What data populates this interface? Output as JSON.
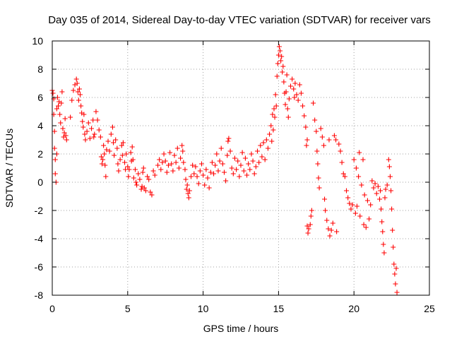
{
  "chart_data": {
    "type": "scatter",
    "title": "Day 035 of 2014, Sidereal Day-to-day VTEC variation (SDTVAR) for receiver vars",
    "xlabel": "GPS time / hours",
    "ylabel": "SDTVAR / TECUs",
    "xlim": [
      0,
      25
    ],
    "ylim": [
      -8,
      10
    ],
    "xticks": [
      "0",
      "5",
      "10",
      "15",
      "20",
      "25"
    ],
    "yticks": [
      "-8",
      "-6",
      "-4",
      "-2",
      "0",
      "2",
      "4",
      "6",
      "8",
      "10"
    ],
    "grid": true,
    "marker": "plus",
    "color": "#ff0000",
    "series": [
      {
        "name": "SDTVAR",
        "points": [
          [
            0.0,
            6.5
          ],
          [
            0.05,
            6.3
          ],
          [
            0.1,
            5.9
          ],
          [
            0.1,
            4.8
          ],
          [
            0.15,
            3.6
          ],
          [
            0.15,
            2.4
          ],
          [
            0.2,
            1.6
          ],
          [
            0.2,
            0.6
          ],
          [
            0.25,
            0.0
          ],
          [
            0.3,
            2.0
          ],
          [
            0.3,
            5.2
          ],
          [
            0.35,
            6.0
          ],
          [
            0.4,
            5.4
          ],
          [
            0.45,
            5.7
          ],
          [
            0.5,
            4.8
          ],
          [
            0.55,
            4.2
          ],
          [
            0.6,
            5.6
          ],
          [
            0.65,
            6.4
          ],
          [
            0.7,
            3.8
          ],
          [
            0.75,
            3.2
          ],
          [
            0.8,
            3.5
          ],
          [
            0.85,
            4.5
          ],
          [
            0.9,
            3.3
          ],
          [
            0.95,
            3.0
          ],
          [
            1.2,
            4.6
          ],
          [
            1.3,
            5.8
          ],
          [
            1.4,
            6.5
          ],
          [
            1.5,
            6.9
          ],
          [
            1.6,
            7.3
          ],
          [
            1.65,
            7.0
          ],
          [
            1.7,
            6.4
          ],
          [
            1.75,
            5.8
          ],
          [
            1.8,
            6.6
          ],
          [
            1.85,
            6.2
          ],
          [
            1.9,
            5.4
          ],
          [
            1.95,
            4.9
          ],
          [
            2.0,
            4.3
          ],
          [
            2.05,
            3.9
          ],
          [
            2.1,
            4.8
          ],
          [
            2.15,
            3.4
          ],
          [
            2.2,
            3.0
          ],
          [
            2.3,
            3.6
          ],
          [
            2.4,
            4.2
          ],
          [
            2.5,
            3.1
          ],
          [
            2.6,
            3.8
          ],
          [
            2.7,
            4.4
          ],
          [
            2.75,
            3.2
          ],
          [
            2.8,
            3.4
          ],
          [
            2.9,
            5.0
          ],
          [
            3.0,
            4.4
          ],
          [
            3.1,
            3.7
          ],
          [
            3.2,
            3.2
          ],
          [
            3.25,
            1.8
          ],
          [
            3.3,
            1.3
          ],
          [
            3.35,
            1.6
          ],
          [
            3.4,
            2.6
          ],
          [
            3.45,
            2.0
          ],
          [
            3.5,
            1.2
          ],
          [
            3.55,
            0.4
          ],
          [
            3.6,
            2.3
          ],
          [
            3.7,
            2.9
          ],
          [
            3.8,
            2.2
          ],
          [
            3.9,
            3.4
          ],
          [
            4.0,
            3.9
          ],
          [
            4.05,
            2.8
          ],
          [
            4.1,
            1.9
          ],
          [
            4.2,
            3.0
          ],
          [
            4.3,
            2.4
          ],
          [
            4.35,
            1.3
          ],
          [
            4.4,
            0.8
          ],
          [
            4.5,
            1.6
          ],
          [
            4.6,
            2.6
          ],
          [
            4.65,
            1.9
          ],
          [
            4.7,
            2.8
          ],
          [
            4.8,
            1.4
          ],
          [
            4.85,
            0.9
          ],
          [
            4.9,
            2.0
          ],
          [
            5.0,
            1.1
          ],
          [
            5.05,
            0.4
          ],
          [
            5.1,
            0.9
          ],
          [
            5.2,
            2.1
          ],
          [
            5.25,
            1.5
          ],
          [
            5.3,
            2.5
          ],
          [
            5.35,
            1.6
          ],
          [
            5.4,
            0.3
          ],
          [
            5.5,
            0.9
          ],
          [
            5.55,
            0.0
          ],
          [
            5.6,
            -0.2
          ],
          [
            5.7,
            0.6
          ],
          [
            5.8,
            0.2
          ],
          [
            5.9,
            -0.5
          ],
          [
            5.95,
            -0.3
          ],
          [
            6.0,
            0.7
          ],
          [
            6.05,
            1.0
          ],
          [
            6.1,
            -0.4
          ],
          [
            6.2,
            -0.6
          ],
          [
            6.3,
            0.4
          ],
          [
            6.4,
            0.2
          ],
          [
            6.5,
            -0.7
          ],
          [
            6.6,
            -0.9
          ],
          [
            6.7,
            0.8
          ],
          [
            6.8,
            0.5
          ],
          [
            7.0,
            1.2
          ],
          [
            7.1,
            1.6
          ],
          [
            7.2,
            0.9
          ],
          [
            7.3,
            1.4
          ],
          [
            7.4,
            2.0
          ],
          [
            7.5,
            1.5
          ],
          [
            7.6,
            0.7
          ],
          [
            7.7,
            1.2
          ],
          [
            7.8,
            2.1
          ],
          [
            7.9,
            1.3
          ],
          [
            8.0,
            0.8
          ],
          [
            8.1,
            1.9
          ],
          [
            8.2,
            1.4
          ],
          [
            8.3,
            2.4
          ],
          [
            8.4,
            1.0
          ],
          [
            8.5,
            1.7
          ],
          [
            8.6,
            2.6
          ],
          [
            8.65,
            2.2
          ],
          [
            8.7,
            1.4
          ],
          [
            8.8,
            0.9
          ],
          [
            8.85,
            0.2
          ],
          [
            8.9,
            -0.5
          ],
          [
            8.95,
            -0.2
          ],
          [
            9.0,
            -0.8
          ],
          [
            9.05,
            -1.1
          ],
          [
            9.1,
            -0.6
          ],
          [
            9.2,
            0.4
          ],
          [
            9.3,
            1.2
          ],
          [
            9.4,
            0.6
          ],
          [
            9.5,
            1.1
          ],
          [
            9.6,
            0.4
          ],
          [
            9.7,
            -0.1
          ],
          [
            9.8,
            0.8
          ],
          [
            9.9,
            1.3
          ],
          [
            10.0,
            0.5
          ],
          [
            10.1,
            -0.2
          ],
          [
            10.2,
            0.9
          ],
          [
            10.3,
            0.3
          ],
          [
            10.4,
            -0.4
          ],
          [
            10.5,
            0.7
          ],
          [
            10.6,
            1.4
          ],
          [
            10.7,
            0.6
          ],
          [
            10.8,
            1.2
          ],
          [
            10.9,
            2.0
          ],
          [
            11.0,
            0.8
          ],
          [
            11.1,
            1.5
          ],
          [
            11.2,
            2.4
          ],
          [
            11.3,
            1.3
          ],
          [
            11.4,
            0.7
          ],
          [
            11.5,
            0.1
          ],
          [
            11.6,
            1.9
          ],
          [
            11.65,
            2.9
          ],
          [
            11.7,
            3.1
          ],
          [
            11.8,
            2.2
          ],
          [
            11.9,
            1.0
          ],
          [
            12.0,
            0.6
          ],
          [
            12.1,
            1.7
          ],
          [
            12.2,
            0.9
          ],
          [
            12.3,
            1.5
          ],
          [
            12.4,
            0.4
          ],
          [
            12.5,
            1.2
          ],
          [
            12.6,
            2.1
          ],
          [
            12.7,
            0.8
          ],
          [
            12.8,
            1.7
          ],
          [
            12.9,
            0.5
          ],
          [
            13.0,
            1.3
          ],
          [
            13.1,
            0.9
          ],
          [
            13.2,
            2.0
          ],
          [
            13.3,
            1.5
          ],
          [
            13.4,
            0.6
          ],
          [
            13.5,
            1.1
          ],
          [
            13.6,
            2.2
          ],
          [
            13.7,
            1.4
          ],
          [
            13.8,
            2.6
          ],
          [
            13.9,
            1.8
          ],
          [
            14.0,
            2.8
          ],
          [
            14.1,
            1.6
          ],
          [
            14.2,
            3.0
          ],
          [
            14.3,
            2.4
          ],
          [
            14.4,
            3.4
          ],
          [
            14.5,
            4.0
          ],
          [
            14.55,
            2.9
          ],
          [
            14.6,
            4.8
          ],
          [
            14.65,
            3.7
          ],
          [
            14.7,
            5.2
          ],
          [
            14.75,
            4.6
          ],
          [
            14.8,
            6.2
          ],
          [
            14.85,
            5.4
          ],
          [
            14.9,
            7.5
          ],
          [
            14.95,
            8.4
          ],
          [
            15.0,
            9.0
          ],
          [
            15.05,
            9.6
          ],
          [
            15.1,
            9.3
          ],
          [
            15.15,
            8.6
          ],
          [
            15.2,
            8.9
          ],
          [
            15.25,
            7.8
          ],
          [
            15.3,
            8.2
          ],
          [
            15.35,
            7.1
          ],
          [
            15.4,
            6.3
          ],
          [
            15.45,
            5.5
          ],
          [
            15.5,
            6.4
          ],
          [
            15.55,
            7.6
          ],
          [
            15.6,
            5.2
          ],
          [
            15.65,
            4.6
          ],
          [
            15.7,
            5.9
          ],
          [
            15.8,
            6.8
          ],
          [
            15.9,
            7.3
          ],
          [
            16.0,
            6.6
          ],
          [
            16.05,
            6.0
          ],
          [
            16.1,
            7.0
          ],
          [
            16.2,
            6.2
          ],
          [
            16.3,
            5.8
          ],
          [
            16.4,
            6.9
          ],
          [
            16.5,
            6.3
          ],
          [
            16.6,
            5.4
          ],
          [
            16.7,
            4.7
          ],
          [
            16.8,
            3.9
          ],
          [
            16.85,
            2.6
          ],
          [
            16.9,
            3.0
          ],
          [
            16.9,
            -3.1
          ],
          [
            16.95,
            -3.6
          ],
          [
            17.0,
            -3.3
          ],
          [
            17.1,
            -3.0
          ],
          [
            17.15,
            -2.4
          ],
          [
            17.2,
            -2.0
          ],
          [
            17.3,
            5.6
          ],
          [
            17.4,
            4.4
          ],
          [
            17.5,
            3.6
          ],
          [
            17.55,
            2.2
          ],
          [
            17.6,
            1.3
          ],
          [
            17.65,
            0.3
          ],
          [
            17.7,
            -0.4
          ],
          [
            17.8,
            3.8
          ],
          [
            17.9,
            3.2
          ],
          [
            18.0,
            2.6
          ],
          [
            18.05,
            -1.2
          ],
          [
            18.1,
            -2.0
          ],
          [
            18.2,
            -2.7
          ],
          [
            18.3,
            -3.3
          ],
          [
            18.35,
            3.0
          ],
          [
            18.4,
            -3.8
          ],
          [
            18.5,
            -3.4
          ],
          [
            18.6,
            -2.9
          ],
          [
            18.7,
            3.3
          ],
          [
            18.8,
            3.0
          ],
          [
            18.85,
            -3.5
          ],
          [
            19.0,
            2.7
          ],
          [
            19.1,
            2.2
          ],
          [
            19.2,
            1.4
          ],
          [
            19.3,
            0.6
          ],
          [
            19.4,
            0.4
          ],
          [
            19.5,
            -0.6
          ],
          [
            19.6,
            -1.1
          ],
          [
            19.7,
            -1.5
          ],
          [
            19.8,
            -1.9
          ],
          [
            19.9,
            -1.6
          ],
          [
            20.0,
            1.6
          ],
          [
            20.1,
            -2.2
          ],
          [
            20.15,
            1.0
          ],
          [
            20.2,
            -1.7
          ],
          [
            20.3,
            0.4
          ],
          [
            20.35,
            2.1
          ],
          [
            20.4,
            -2.4
          ],
          [
            20.5,
            -0.2
          ],
          [
            20.6,
            1.6
          ],
          [
            20.65,
            -3.0
          ],
          [
            20.7,
            -0.9
          ],
          [
            20.8,
            -3.2
          ],
          [
            20.9,
            -1.3
          ],
          [
            21.0,
            -2.6
          ],
          [
            21.1,
            -1.6
          ],
          [
            21.2,
            0.1
          ],
          [
            21.3,
            -0.4
          ],
          [
            21.4,
            -0.1
          ],
          [
            21.5,
            -0.8
          ],
          [
            21.6,
            -0.3
          ],
          [
            21.7,
            -1.2
          ],
          [
            21.75,
            -0.6
          ],
          [
            21.8,
            -1.9
          ],
          [
            21.85,
            -2.8
          ],
          [
            21.9,
            -3.5
          ],
          [
            21.95,
            -4.4
          ],
          [
            22.0,
            -5.0
          ],
          [
            22.05,
            -1.1
          ],
          [
            22.1,
            -0.5
          ],
          [
            22.2,
            -0.2
          ],
          [
            22.3,
            1.6
          ],
          [
            22.35,
            1.1
          ],
          [
            22.4,
            0.4
          ],
          [
            22.45,
            -0.6
          ],
          [
            22.5,
            -1.9
          ],
          [
            22.55,
            -3.4
          ],
          [
            22.6,
            -4.6
          ],
          [
            22.65,
            -5.8
          ],
          [
            22.7,
            -6.5
          ],
          [
            22.75,
            -7.2
          ],
          [
            22.8,
            -6.1
          ],
          [
            22.85,
            -7.8
          ]
        ]
      }
    ]
  }
}
